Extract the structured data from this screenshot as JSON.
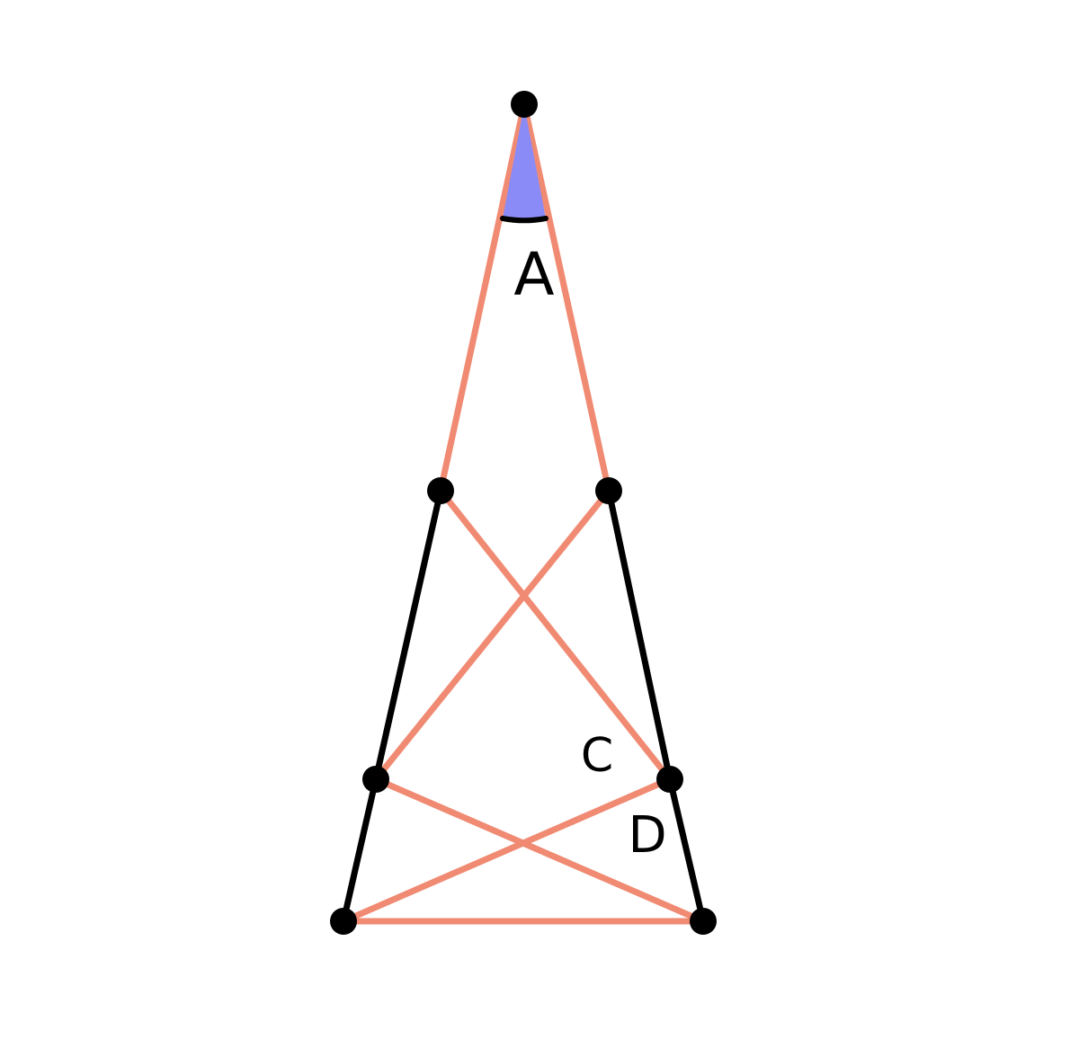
{
  "diagram": {
    "labels": {
      "apex_angle": "A",
      "inner_angle_c": "C",
      "inner_angle_d": "D"
    },
    "colors": {
      "background": "#ffffff",
      "salmon_segments": "#f08a72",
      "black_segments": "#000000",
      "points": "#000000",
      "angle_fill": "#8b8bf7"
    },
    "point_names": [
      "apex",
      "upper-left",
      "upper-right",
      "middle-left",
      "middle-right",
      "base-left",
      "base-right"
    ],
    "segments": {
      "salmon": [
        [
          "apex",
          "upper-left"
        ],
        [
          "apex",
          "upper-right"
        ],
        [
          "upper-left",
          "middle-right"
        ],
        [
          "upper-right",
          "middle-left"
        ],
        [
          "middle-left",
          "base-right"
        ],
        [
          "middle-right",
          "base-left"
        ],
        [
          "base-left",
          "base-right"
        ]
      ],
      "black": [
        [
          "upper-left",
          "middle-left"
        ],
        [
          "middle-left",
          "base-left"
        ],
        [
          "upper-right",
          "middle-right"
        ],
        [
          "middle-right",
          "base-right"
        ]
      ]
    }
  }
}
